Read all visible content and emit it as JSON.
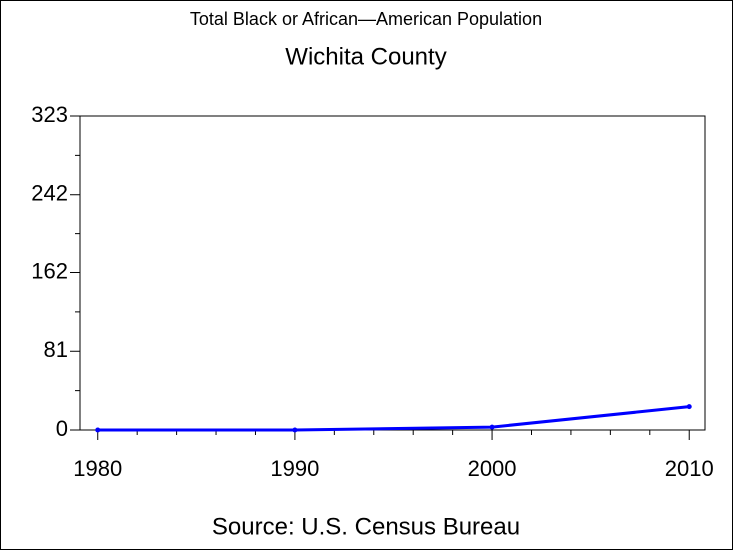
{
  "chart_data": {
    "type": "line",
    "title": "Total Black or African—American Population",
    "subtitle": "Wichita County",
    "source": "Source: U.S. Census Bureau",
    "x": [
      1980,
      1990,
      2000,
      2010
    ],
    "series": [
      {
        "name": "Black or African-American",
        "color": "#0000ff",
        "values": [
          0,
          0,
          3,
          24
        ]
      }
    ],
    "xlim": [
      1979.1,
      2010.8
    ],
    "xticks": [
      1980,
      1990,
      2000,
      2010
    ],
    "ylim": [
      0,
      323
    ],
    "yticks": [
      0,
      81,
      162,
      242,
      323
    ]
  }
}
